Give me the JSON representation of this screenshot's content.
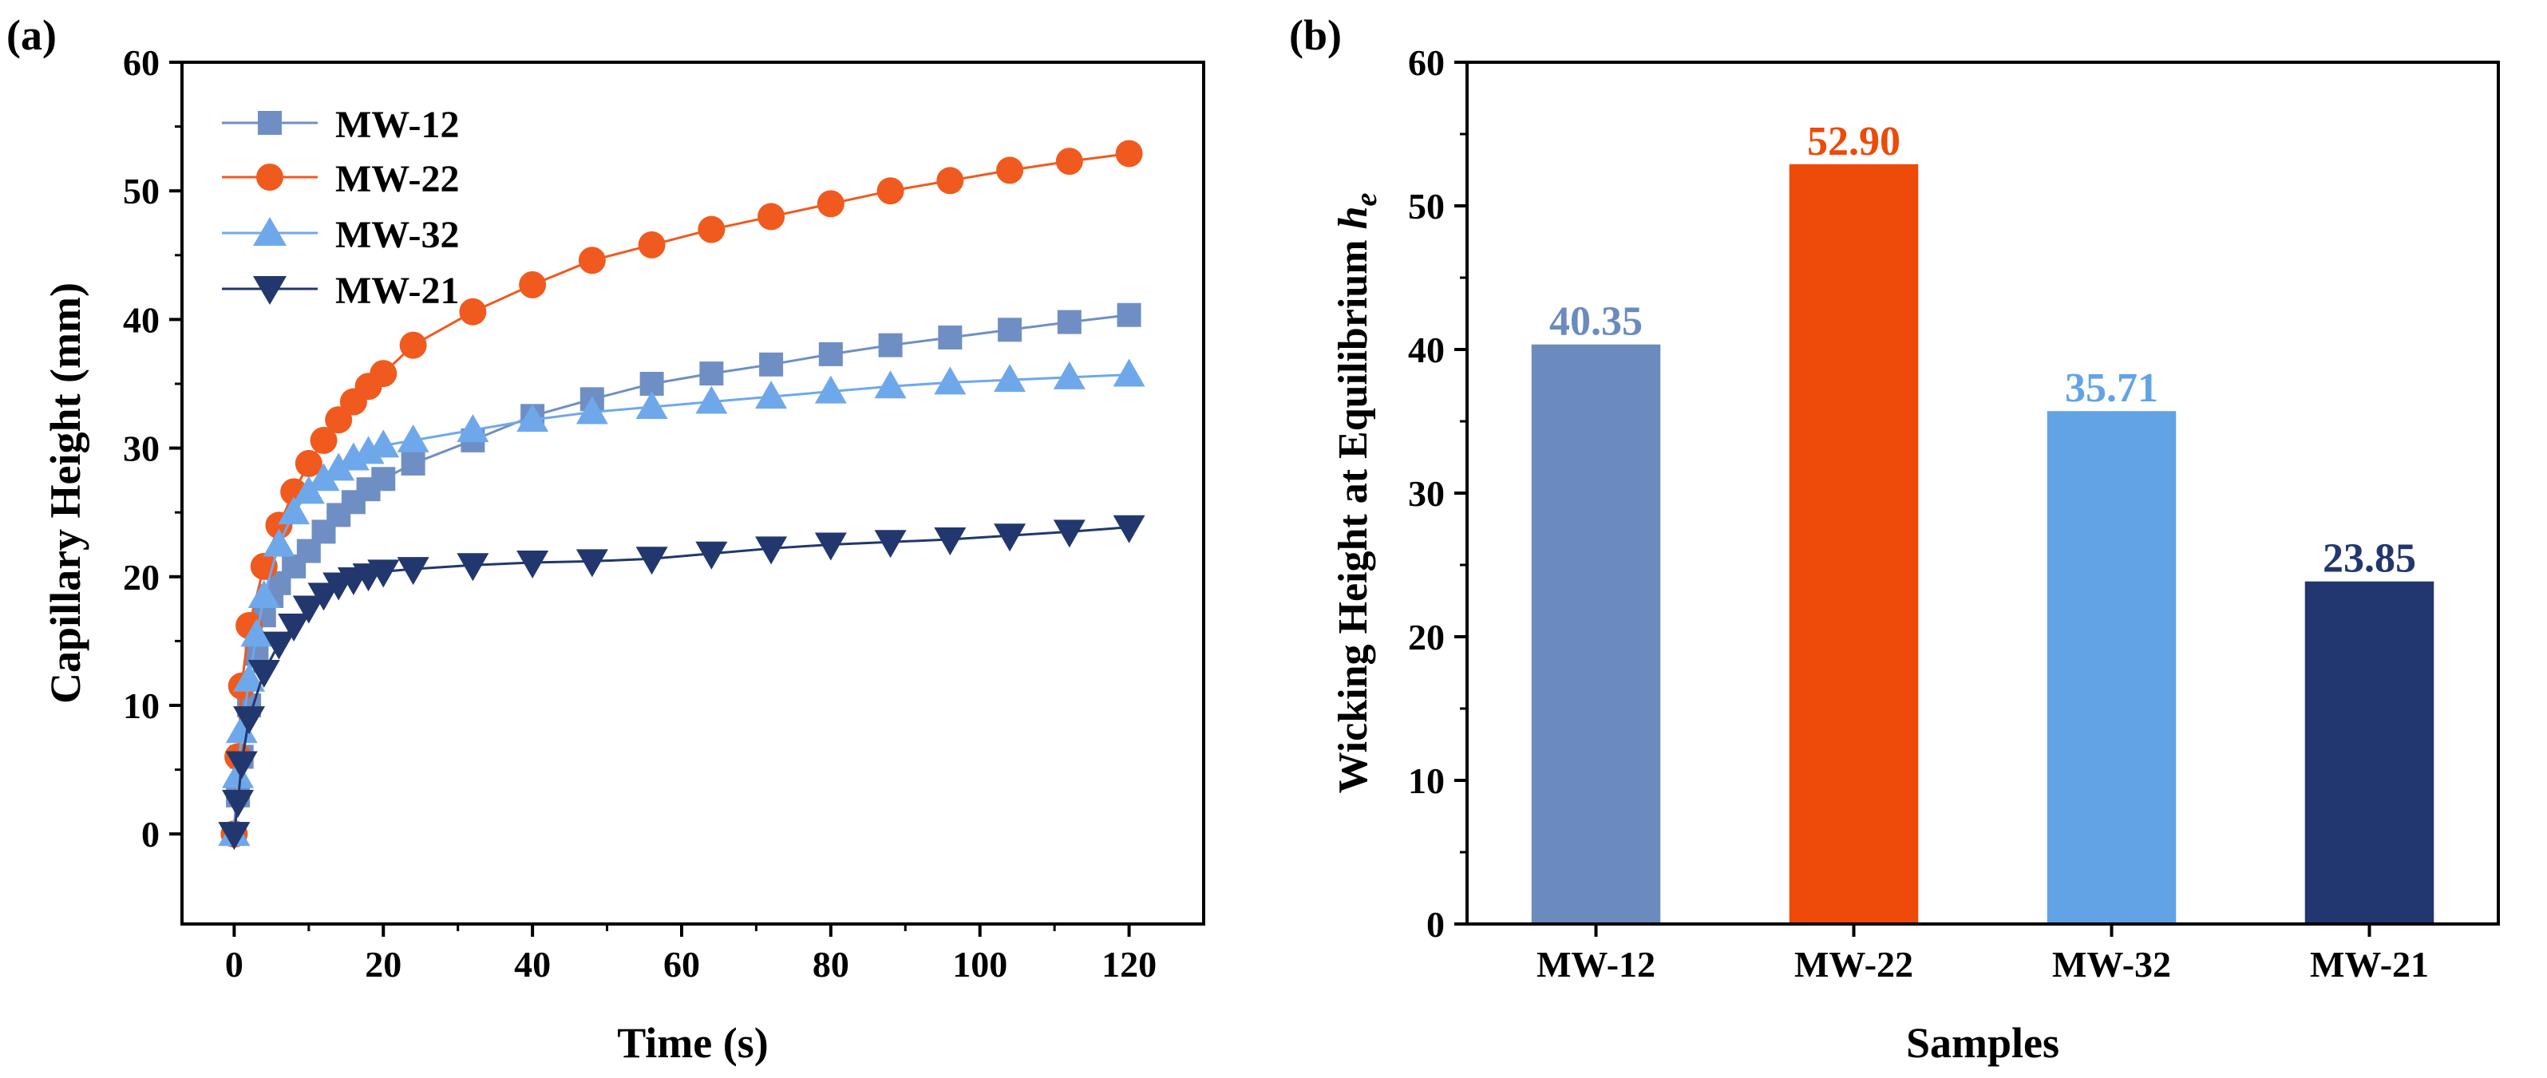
{
  "chart_data": [
    {
      "panel_label": "(a)",
      "type": "line",
      "xlabel": "Time (s)",
      "ylabel": "Capillary Height (mm)",
      "xlim": [
        -7,
        130
      ],
      "ylim": [
        -7,
        60
      ],
      "xticks": [
        0,
        20,
        40,
        60,
        80,
        100,
        120
      ],
      "yticks": [
        0,
        10,
        20,
        30,
        40,
        50,
        60
      ],
      "x_tick_labels": [
        "0",
        "20",
        "40",
        "60",
        "80",
        "100",
        "120"
      ],
      "y_tick_labels": [
        "0",
        "10",
        "20",
        "30",
        "40",
        "50",
        "60"
      ],
      "legend_position": "top-left",
      "series": [
        {
          "name": "MW-12",
          "marker": "square",
          "color": "#6f8fc4",
          "x": [
            0,
            0.5,
            1,
            2,
            3,
            4,
            5,
            6,
            8,
            10,
            12,
            14,
            16,
            18,
            20,
            24,
            32,
            40,
            48,
            56,
            64,
            72,
            80,
            88,
            96,
            104,
            112,
            120
          ],
          "y": [
            0,
            3,
            6,
            10,
            14,
            17,
            18.5,
            19.5,
            20.8,
            22,
            23.5,
            24.8,
            25.8,
            26.8,
            27.6,
            28.8,
            30.6,
            32.5,
            33.8,
            35,
            35.8,
            36.5,
            37.3,
            38,
            38.6,
            39.2,
            39.8,
            40.35
          ]
        },
        {
          "name": "MW-22",
          "marker": "circle",
          "color": "#f05a1e",
          "x": [
            0,
            0.5,
            1,
            2,
            4,
            6,
            8,
            10,
            12,
            14,
            16,
            18,
            20,
            24,
            32,
            40,
            48,
            56,
            64,
            72,
            80,
            88,
            96,
            104,
            112,
            120
          ],
          "y": [
            0,
            6,
            11.5,
            16.2,
            20.8,
            24,
            26.6,
            28.8,
            30.6,
            32.2,
            33.6,
            34.8,
            35.8,
            38,
            40.6,
            42.7,
            44.6,
            45.8,
            47,
            48,
            49,
            50,
            50.8,
            51.6,
            52.3,
            52.9
          ]
        },
        {
          "name": "MW-32",
          "marker": "triangle-up",
          "color": "#6fa8ea",
          "x": [
            0,
            0.5,
            1,
            2,
            3,
            4,
            6,
            8,
            10,
            12,
            14,
            16,
            18,
            20,
            24,
            32,
            40,
            48,
            56,
            64,
            72,
            80,
            88,
            96,
            104,
            112,
            120
          ],
          "y": [
            0,
            4.5,
            8,
            12,
            15.5,
            18.5,
            22.5,
            25,
            26.6,
            27.6,
            28.4,
            29.2,
            29.7,
            30.2,
            30.6,
            31.4,
            32.2,
            32.8,
            33.2,
            33.6,
            34,
            34.4,
            34.8,
            35.1,
            35.3,
            35.5,
            35.71
          ]
        },
        {
          "name": "MW-21",
          "marker": "triangle-down",
          "color": "#22376e",
          "x": [
            0,
            0.5,
            1,
            2,
            4,
            6,
            8,
            10,
            12,
            14,
            16,
            18,
            20,
            24,
            32,
            40,
            48,
            56,
            64,
            72,
            80,
            88,
            96,
            104,
            112,
            120
          ],
          "y": [
            0,
            2.5,
            5.5,
            9,
            12.6,
            14.8,
            16.2,
            17.6,
            18.6,
            19.4,
            19.8,
            20.1,
            20.4,
            20.6,
            20.9,
            21.1,
            21.2,
            21.4,
            21.8,
            22.2,
            22.5,
            22.7,
            22.9,
            23.2,
            23.5,
            23.85
          ]
        }
      ]
    },
    {
      "panel_label": "(b)",
      "type": "bar",
      "xlabel": "Samples",
      "ylabel_main": "Wicking Height at Equilibrium ",
      "ylabel_symbol": "h",
      "ylabel_sub": "e",
      "ylim": [
        0,
        60
      ],
      "yticks": [
        0,
        10,
        20,
        30,
        40,
        50,
        60
      ],
      "y_tick_labels": [
        "0",
        "10",
        "20",
        "30",
        "40",
        "50",
        "60"
      ],
      "categories": [
        "MW-12",
        "MW-22",
        "MW-32",
        "MW-21"
      ],
      "values": [
        40.35,
        52.9,
        35.71,
        23.85
      ],
      "value_labels": [
        "40.35",
        "52.90",
        "35.71",
        "23.85"
      ],
      "colors": [
        "#6b8bbe",
        "#ee4a09",
        "#62a3e6",
        "#22366f"
      ]
    }
  ]
}
